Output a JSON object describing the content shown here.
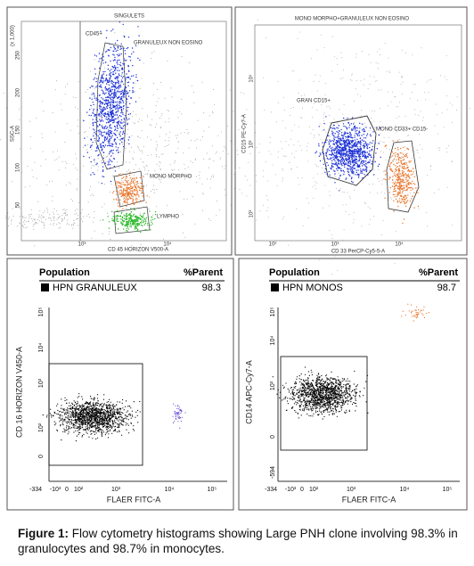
{
  "panels": [
    {
      "title": "SINGULETS",
      "x_label": "CD 45 HORIZON V500-A",
      "y_label": "SSC-A",
      "y_unit": "(x 1,000)",
      "yticks": [
        "250",
        "200",
        "150",
        "100",
        "50"
      ],
      "xticks": [
        "10³",
        "10⁴"
      ],
      "gates": [
        "CD45+",
        "GRANULEUX NON EOSINO",
        "MONO MORPHO",
        "LYMPHO"
      ]
    },
    {
      "title": "MONO MORPHO+GRANULEUX NON EOSINO",
      "x_label": "CD 33 PerCP-Cy5-5-A",
      "y_label": "CD15 PE-Cy7-A",
      "yticks": [
        "10⁴",
        "10³",
        "10²"
      ],
      "xticks": [
        "10²",
        "10³",
        "10⁴"
      ],
      "gates": [
        "GRAN CD15+",
        "MONO CD33+ CD15-"
      ]
    },
    {
      "table": {
        "header": [
          "Population",
          "%Parent"
        ],
        "row": [
          "HPN GRANULEUX",
          98.3
        ]
      },
      "x_label": "FLAER FITC-A",
      "y_label": "CD 16 HORIZON V450-A",
      "xticks": [
        "-334",
        "-10³",
        "0",
        "10²",
        "10³",
        "10⁴",
        "10⁵"
      ],
      "yticks": [
        "10⁵",
        "10⁴",
        "10³",
        "10²",
        "0"
      ]
    },
    {
      "table": {
        "header": [
          "Population",
          "%Parent"
        ],
        "row": [
          "HPN MONOS",
          98.7
        ]
      },
      "x_label": "FLAER FITC-A",
      "y_label": "CD14 APC-Cy7-A",
      "xticks": [
        "-334",
        "-10³",
        "0",
        "10²",
        "10³",
        "10⁴",
        "10⁵"
      ],
      "yticks": [
        "10⁵",
        "10⁴",
        "10³",
        "0",
        "-594"
      ]
    }
  ],
  "caption": {
    "label": "Figure 1:",
    "text": "Flow cytometry histograms showing Large PNH clone involving 98.3% in granulocytes and 98.7% in monocytes."
  }
}
